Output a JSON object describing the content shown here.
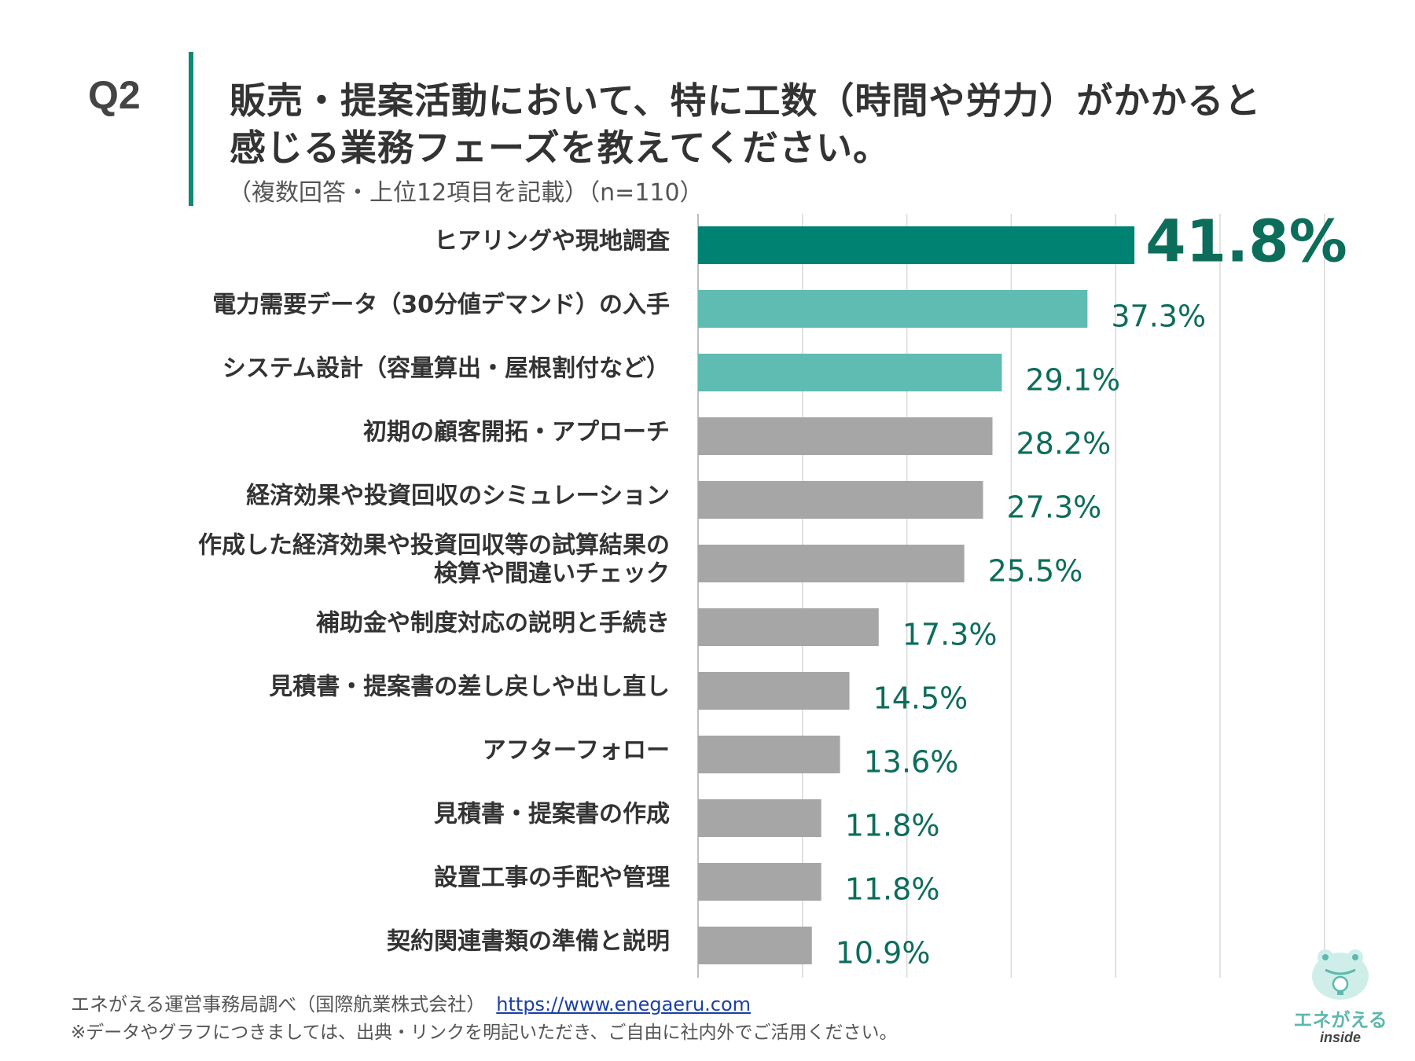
{
  "question": {
    "label": "Q2",
    "title_line1": "販売・提案活動において、特に工数（時間や労力）がかかると",
    "title_line2": "感じる業務フェーズを教えてください。",
    "subtitle": "（複数回答・上位12項目を記載）（n=110）"
  },
  "chart_data": {
    "type": "bar",
    "orientation": "horizontal",
    "title": "販売・提案活動において、特に工数（時間や労力）がかかると感じる業務フェーズを教えてください。",
    "xlabel": "",
    "ylabel": "",
    "xlim": [
      0,
      60
    ],
    "grid": true,
    "value_suffix": "%",
    "categories": [
      "ヒアリングや現地調査",
      "電力需要データ（30分値デマンド）の入手",
      "システム設計（容量算出・屋根割付など）",
      "初期の顧客開拓・アプローチ",
      "経済効果や投資回収のシミュレーション",
      "作成した経済効果や投資回収等の試算結果の\n検算や間違いチェック",
      "補助金や制度対応の説明と手続き",
      "見積書・提案書の差し戻しや出し直し",
      "アフターフォロー",
      "見積書・提案書の作成",
      "設置工事の手配や管理",
      "契約関連書類の準備と説明"
    ],
    "values": [
      41.8,
      37.3,
      29.1,
      28.2,
      27.3,
      25.5,
      17.3,
      14.5,
      13.6,
      11.8,
      11.8,
      10.9
    ],
    "value_labels": [
      "41.8%",
      "37.3%",
      "29.1%",
      "28.2%",
      "27.3%",
      "25.5%",
      "17.3%",
      "14.5%",
      "13.6%",
      "11.8%",
      "11.8%",
      "10.9%"
    ],
    "bar_colors": [
      "#008272",
      "#5fbcb2",
      "#5fbcb2",
      "#a6a6a6",
      "#a6a6a6",
      "#a6a6a6",
      "#a6a6a6",
      "#a6a6a6",
      "#a6a6a6",
      "#a6a6a6",
      "#a6a6a6",
      "#a6a6a6"
    ]
  },
  "footer": {
    "source": "エネがえる運営事務局調べ（国際航業株式会社）",
    "url": "https://www.enegaeru.com",
    "note": "※データやグラフにつきましては、出典・リンクを明記いただき、ご自由に社内外でご活用ください。"
  },
  "logo": {
    "name": "エネがえる",
    "sub": "inside",
    "icon": "frog-bulb-icon"
  },
  "colors": {
    "accent": "#0e8a73",
    "value_text": "#0c6d5b",
    "grid": "#d9d9d9"
  }
}
